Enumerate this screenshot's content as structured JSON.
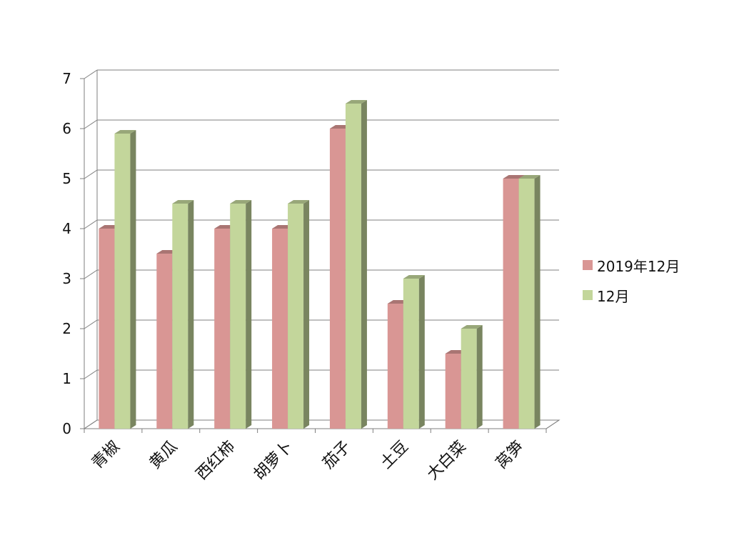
{
  "chart_data": {
    "type": "bar",
    "categories": [
      "青椒",
      "黄瓜",
      "西红柿",
      "胡萝卜",
      "茄子",
      "土豆",
      "大白菜",
      "莴笋"
    ],
    "series": [
      {
        "name": "2019年12月",
        "values": [
          4,
          3.5,
          4,
          4,
          6,
          2.5,
          1.5,
          5
        ],
        "color": "#d99694"
      },
      {
        "name": "12月",
        "values": [
          5.9,
          4.5,
          4.5,
          4.5,
          6.5,
          3,
          2,
          5
        ],
        "color": "#c3d69b"
      }
    ],
    "ylim": [
      0,
      7
    ],
    "yticks": [
      "0",
      "1",
      "2",
      "3",
      "4",
      "5",
      "6",
      "7"
    ],
    "grid": true,
    "legend_position": "right",
    "style": "3d-clustered-column"
  }
}
